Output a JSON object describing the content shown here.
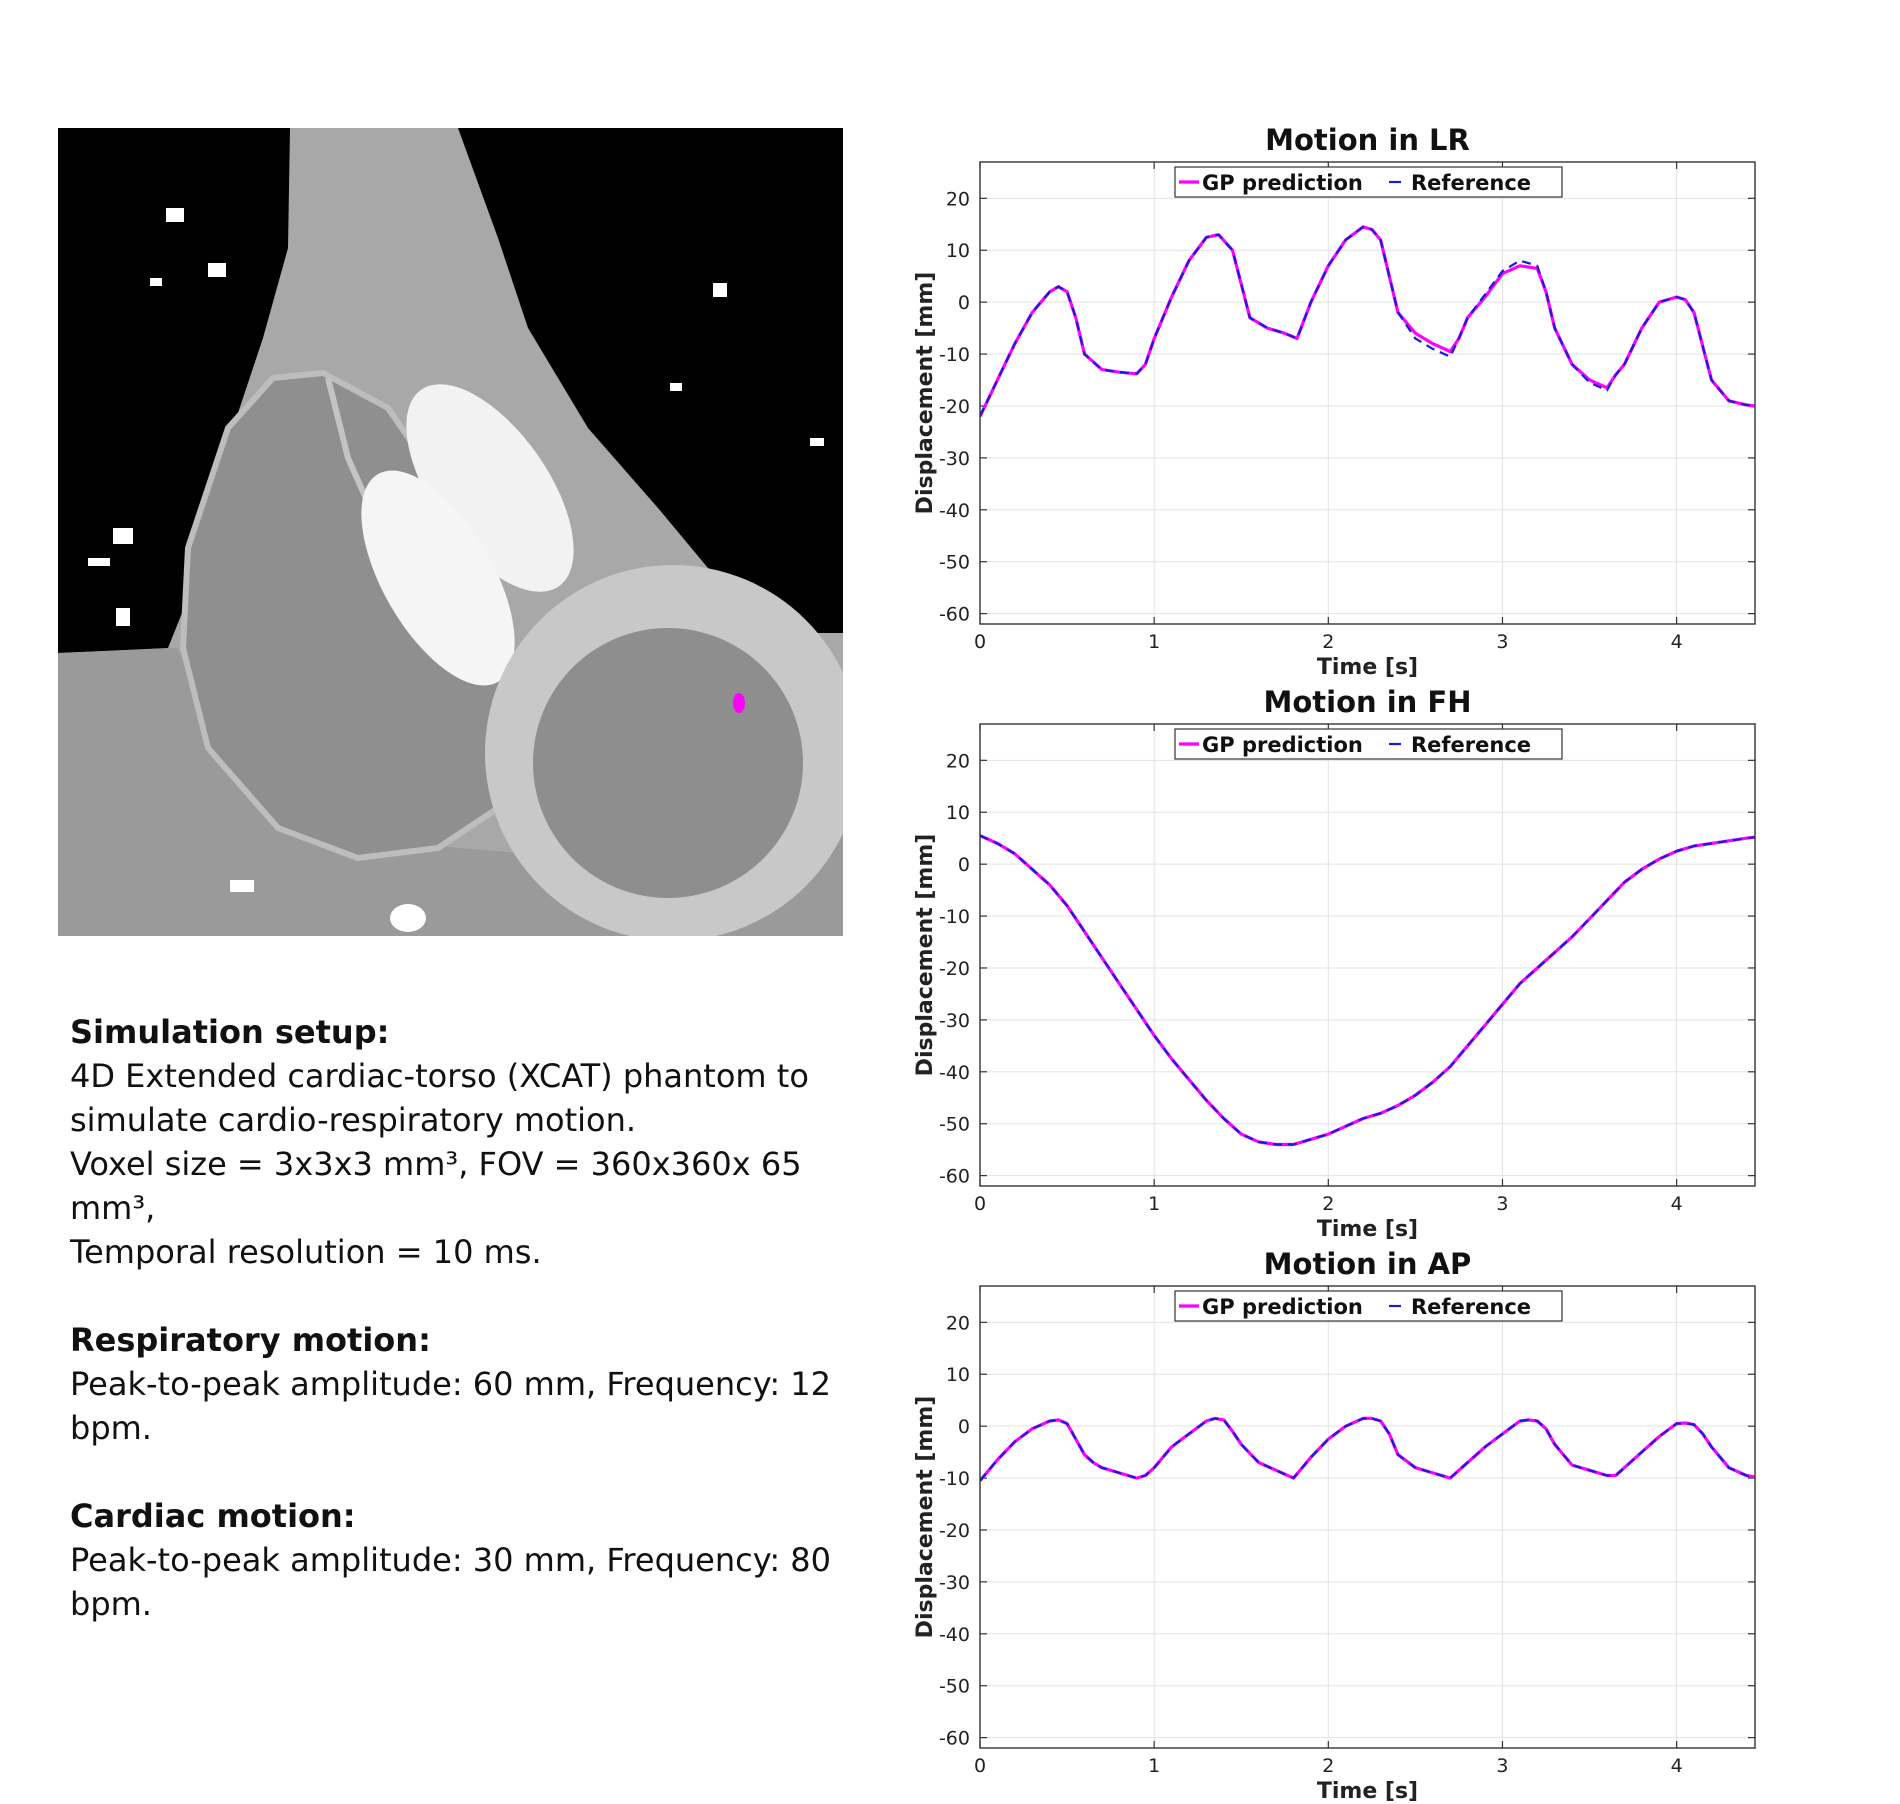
{
  "setup_text": {
    "sim_heading": "Simulation setup:",
    "sim_line1": "4D Extended cardiac-torso (XCAT) phantom to",
    "sim_line2": "simulate cardio-respiratory motion.",
    "sim_line3": "Voxel size = 3x3x3 mm³, FOV = 360x360x 65 mm³,",
    "sim_line4": "Temporal resolution = 10 ms.",
    "resp_heading": "Respiratory motion:",
    "resp_line": "Peak-to-peak amplitude: 60 mm, Frequency: 12 bpm.",
    "card_heading": "Cardiac motion:",
    "card_line": "Peak-to-peak amplitude: 30 mm, Frequency: 80 bpm."
  },
  "colors": {
    "gp_prediction": "#ff00ff",
    "reference": "#1a1ad9",
    "marker": "#ff00ff"
  },
  "chart_data": [
    {
      "type": "line",
      "title": "Motion in LR",
      "xlabel": "Time [s]",
      "ylabel": "Displacement [mm]",
      "xlim": [
        0,
        4.45
      ],
      "ylim": [
        -62,
        27
      ],
      "xticks": [
        0,
        1,
        2,
        3,
        4
      ],
      "yticks": [
        20,
        10,
        0,
        -10,
        -20,
        -30,
        -40,
        -50,
        -60
      ],
      "grid": true,
      "legend_position": "top-center",
      "series": [
        {
          "name": "GP prediction",
          "x": [
            0,
            0.1,
            0.2,
            0.3,
            0.4,
            0.45,
            0.5,
            0.55,
            0.6,
            0.7,
            0.8,
            0.9,
            0.95,
            1.0,
            1.1,
            1.2,
            1.3,
            1.37,
            1.45,
            1.55,
            1.65,
            1.75,
            1.82,
            1.9,
            2.0,
            2.1,
            2.2,
            2.25,
            2.3,
            2.4,
            2.5,
            2.6,
            2.7,
            2.75,
            2.8,
            2.9,
            3.0,
            3.1,
            3.2,
            3.25,
            3.3,
            3.4,
            3.5,
            3.6,
            3.65,
            3.7,
            3.8,
            3.9,
            4.0,
            4.05,
            4.1,
            4.2,
            4.3,
            4.4,
            4.45
          ],
          "values": [
            -22,
            -15,
            -8,
            -2,
            2,
            3,
            2,
            -3,
            -10,
            -13,
            -13.5,
            -13.8,
            -12,
            -7,
            1,
            8,
            12.5,
            13,
            10,
            -3,
            -5,
            -6,
            -7,
            0,
            7,
            12,
            14.5,
            14,
            12,
            -2,
            -6,
            -8,
            -9.5,
            -7,
            -3,
            1,
            5.5,
            7,
            6.5,
            2,
            -5,
            -12,
            -15,
            -16.5,
            -14,
            -12,
            -5,
            0,
            1,
            0.5,
            -2,
            -15,
            -19,
            -19.8,
            -20
          ]
        },
        {
          "name": "Reference",
          "x": [
            0,
            0.1,
            0.2,
            0.3,
            0.4,
            0.45,
            0.5,
            0.55,
            0.6,
            0.7,
            0.8,
            0.9,
            0.95,
            1.0,
            1.1,
            1.2,
            1.3,
            1.37,
            1.45,
            1.55,
            1.65,
            1.75,
            1.82,
            1.9,
            2.0,
            2.1,
            2.2,
            2.25,
            2.3,
            2.4,
            2.5,
            2.6,
            2.7,
            2.75,
            2.8,
            2.9,
            3.0,
            3.1,
            3.2,
            3.25,
            3.3,
            3.4,
            3.5,
            3.6,
            3.65,
            3.7,
            3.8,
            3.9,
            4.0,
            4.05,
            4.1,
            4.2,
            4.3,
            4.4,
            4.45
          ],
          "values": [
            -22,
            -15,
            -8,
            -2,
            2,
            3,
            2,
            -3,
            -10,
            -13,
            -13.5,
            -13.8,
            -12,
            -7,
            1,
            8,
            12.5,
            13,
            10,
            -3,
            -5,
            -6,
            -7,
            0,
            7,
            12,
            14.5,
            14,
            12,
            -2,
            -7,
            -9,
            -10.5,
            -7,
            -3,
            1.5,
            6,
            8,
            7,
            2,
            -5,
            -12,
            -15.5,
            -17,
            -14,
            -12,
            -5,
            0,
            1,
            0.5,
            -2,
            -15,
            -19,
            -19.8,
            -20
          ]
        }
      ]
    },
    {
      "type": "line",
      "title": "Motion in FH",
      "xlabel": "Time [s]",
      "ylabel": "Displacement [mm]",
      "xlim": [
        0,
        4.45
      ],
      "ylim": [
        -62,
        27
      ],
      "xticks": [
        0,
        1,
        2,
        3,
        4
      ],
      "yticks": [
        20,
        10,
        0,
        -10,
        -20,
        -30,
        -40,
        -50,
        -60
      ],
      "grid": true,
      "legend_position": "top-center",
      "series": [
        {
          "name": "GP prediction",
          "x": [
            0,
            0.1,
            0.2,
            0.3,
            0.4,
            0.5,
            0.6,
            0.7,
            0.8,
            0.9,
            1.0,
            1.1,
            1.2,
            1.3,
            1.4,
            1.5,
            1.6,
            1.7,
            1.8,
            1.9,
            2.0,
            2.1,
            2.2,
            2.3,
            2.4,
            2.5,
            2.6,
            2.7,
            2.8,
            2.9,
            3.0,
            3.1,
            3.2,
            3.3,
            3.4,
            3.5,
            3.6,
            3.7,
            3.8,
            3.9,
            4.0,
            4.1,
            4.2,
            4.3,
            4.4,
            4.45
          ],
          "values": [
            5.5,
            4,
            2,
            -1,
            -4,
            -8,
            -13,
            -18,
            -23,
            -28,
            -33,
            -37.5,
            -41.5,
            -45.5,
            -49,
            -52,
            -53.5,
            -54,
            -54,
            -53,
            -52,
            -50.5,
            -49,
            -48,
            -46.5,
            -44.5,
            -42,
            -39,
            -35,
            -31,
            -27,
            -23,
            -20,
            -17,
            -14,
            -10.5,
            -7,
            -3.5,
            -1,
            1,
            2.5,
            3.5,
            4,
            4.5,
            5,
            5.2
          ]
        },
        {
          "name": "Reference",
          "x": [
            0,
            0.1,
            0.2,
            0.3,
            0.4,
            0.5,
            0.6,
            0.7,
            0.8,
            0.9,
            1.0,
            1.1,
            1.2,
            1.3,
            1.4,
            1.5,
            1.6,
            1.7,
            1.8,
            1.9,
            2.0,
            2.1,
            2.2,
            2.3,
            2.4,
            2.5,
            2.6,
            2.7,
            2.8,
            2.9,
            3.0,
            3.1,
            3.2,
            3.3,
            3.4,
            3.5,
            3.6,
            3.7,
            3.8,
            3.9,
            4.0,
            4.1,
            4.2,
            4.3,
            4.4,
            4.45
          ],
          "values": [
            5.5,
            4,
            2,
            -1,
            -4,
            -8,
            -13,
            -18,
            -23,
            -28,
            -33,
            -37.5,
            -41.5,
            -45.5,
            -49,
            -52,
            -53.5,
            -54,
            -54,
            -53,
            -52,
            -50.5,
            -49,
            -48,
            -46.5,
            -44.5,
            -42,
            -39,
            -35,
            -31,
            -27,
            -23,
            -20,
            -17,
            -14,
            -10.5,
            -7,
            -3.5,
            -1,
            1,
            2.5,
            3.5,
            4,
            4.5,
            5,
            5.2
          ]
        }
      ]
    },
    {
      "type": "line",
      "title": "Motion in AP",
      "xlabel": "Time [s]",
      "ylabel": "Displacement [mm]",
      "xlim": [
        0,
        4.45
      ],
      "ylim": [
        -62,
        27
      ],
      "xticks": [
        0,
        1,
        2,
        3,
        4
      ],
      "yticks": [
        20,
        10,
        0,
        -10,
        -20,
        -30,
        -40,
        -50,
        -60
      ],
      "grid": true,
      "legend_position": "top-center",
      "series": [
        {
          "name": "GP prediction",
          "x": [
            0,
            0.1,
            0.2,
            0.3,
            0.4,
            0.45,
            0.5,
            0.55,
            0.6,
            0.65,
            0.7,
            0.8,
            0.9,
            0.95,
            1.0,
            1.1,
            1.2,
            1.3,
            1.35,
            1.4,
            1.45,
            1.5,
            1.6,
            1.7,
            1.8,
            1.9,
            2.0,
            2.1,
            2.2,
            2.25,
            2.3,
            2.35,
            2.4,
            2.5,
            2.6,
            2.7,
            2.8,
            2.9,
            3.0,
            3.1,
            3.15,
            3.2,
            3.25,
            3.3,
            3.4,
            3.5,
            3.6,
            3.65,
            3.7,
            3.8,
            3.9,
            4.0,
            4.05,
            4.1,
            4.15,
            4.2,
            4.3,
            4.4,
            4.45
          ],
          "values": [
            -10.5,
            -6.5,
            -3,
            -0.5,
            1,
            1.2,
            0.5,
            -2.5,
            -5.5,
            -7,
            -8,
            -9,
            -10,
            -9.5,
            -8,
            -4,
            -1.5,
            1,
            1.5,
            1.2,
            -1,
            -3.5,
            -7,
            -8.5,
            -10,
            -6,
            -2.5,
            0,
            1.5,
            1.5,
            1,
            -1.5,
            -5.5,
            -8,
            -9,
            -10,
            -7,
            -4,
            -1.5,
            1,
            1.2,
            1,
            -0.5,
            -3.5,
            -7.5,
            -8.5,
            -9.5,
            -9.5,
            -8,
            -5,
            -2,
            0.5,
            0.6,
            0.3,
            -1.5,
            -4,
            -8,
            -9.5,
            -9.8
          ]
        },
        {
          "name": "Reference",
          "x": [
            0,
            0.1,
            0.2,
            0.3,
            0.4,
            0.45,
            0.5,
            0.55,
            0.6,
            0.65,
            0.7,
            0.8,
            0.9,
            0.95,
            1.0,
            1.1,
            1.2,
            1.3,
            1.35,
            1.4,
            1.45,
            1.5,
            1.6,
            1.7,
            1.8,
            1.9,
            2.0,
            2.1,
            2.2,
            2.25,
            2.3,
            2.35,
            2.4,
            2.5,
            2.6,
            2.7,
            2.8,
            2.9,
            3.0,
            3.1,
            3.15,
            3.2,
            3.25,
            3.3,
            3.4,
            3.5,
            3.6,
            3.65,
            3.7,
            3.8,
            3.9,
            4.0,
            4.05,
            4.1,
            4.15,
            4.2,
            4.3,
            4.4,
            4.45
          ],
          "values": [
            -10.5,
            -6.5,
            -3,
            -0.5,
            1,
            1.2,
            0.5,
            -2.5,
            -5.5,
            -7,
            -8,
            -9,
            -10,
            -9.5,
            -8,
            -4,
            -1.5,
            1,
            1.5,
            1.2,
            -1,
            -3.5,
            -7,
            -8.5,
            -10,
            -6,
            -2.5,
            0,
            1.5,
            1.5,
            1,
            -1.5,
            -5.5,
            -8,
            -9,
            -10,
            -7,
            -4,
            -1.5,
            1,
            1.2,
            1,
            -0.5,
            -3.5,
            -7.5,
            -8.5,
            -9.5,
            -9.5,
            -8,
            -5,
            -2,
            0.5,
            0.6,
            0.3,
            -1.5,
            -4,
            -8,
            -9.5,
            -9.8
          ]
        }
      ]
    }
  ]
}
